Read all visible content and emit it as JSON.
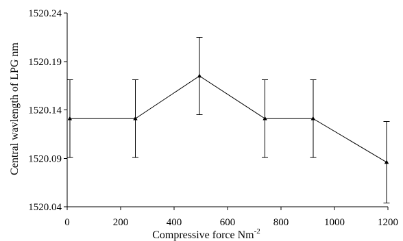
{
  "chart_data": {
    "type": "line",
    "title": "",
    "xlabel_text": "Compressive force Nm",
    "xlabel_sup": "-2",
    "ylabel": "Central wavlength of LPG nm",
    "xlim": [
      0,
      1200
    ],
    "ylim": [
      1520.04,
      1520.24
    ],
    "x_ticks": [
      0,
      200,
      400,
      600,
      800,
      1000,
      1200
    ],
    "x_tick_labels": [
      "0",
      "200",
      "400",
      "600",
      "800",
      "1000",
      "1200"
    ],
    "y_ticks": [
      1520.04,
      1520.09,
      1520.14,
      1520.19,
      1520.24
    ],
    "y_tick_labels": [
      "1520.04",
      "1520.09",
      "1520.14",
      "1520.19",
      "1520.24"
    ],
    "grid": false,
    "legend": "none",
    "series": [
      {
        "x": [
          10,
          255,
          495,
          740,
          920,
          1195
        ],
        "y": [
          1520.131,
          1520.131,
          1520.175,
          1520.131,
          1520.131,
          1520.086
        ],
        "err": [
          0.04,
          0.04,
          0.04,
          0.04,
          0.04,
          0.042
        ],
        "color": "#000000",
        "marker": "triangle"
      }
    ]
  }
}
